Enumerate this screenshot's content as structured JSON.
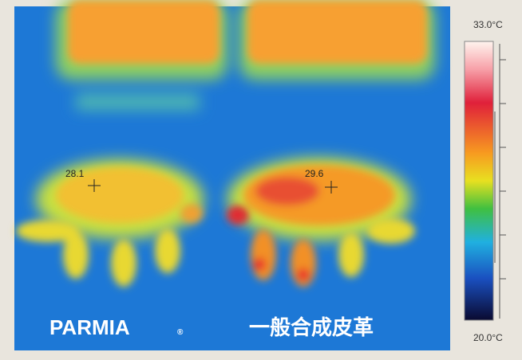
{
  "image": {
    "scale_max": "33.0°C",
    "scale_min": "20.0°C",
    "readings": [
      "28.1",
      "29.6"
    ],
    "captions": {
      "left": "PARMIA",
      "left_mark": "®",
      "right": "一般合成皮革"
    }
  }
}
